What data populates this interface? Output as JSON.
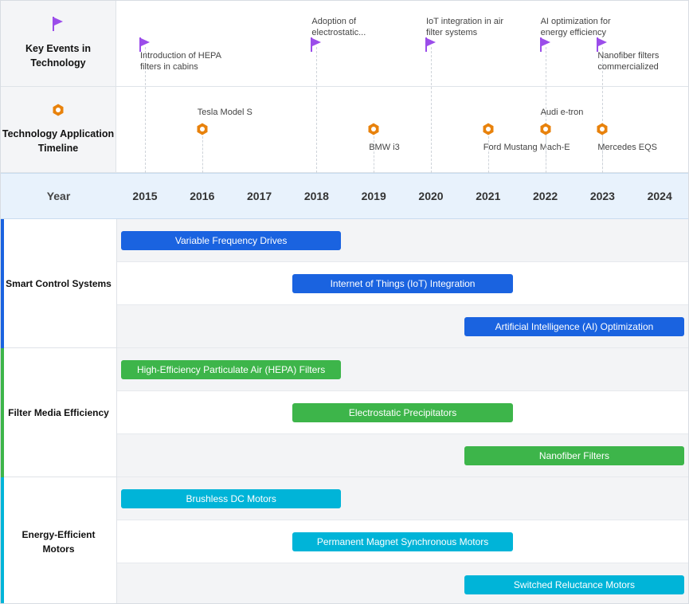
{
  "colors": {
    "event_flag": "#9b4dea",
    "application_marker": "#e8820c",
    "smart_control": "#1a63e0",
    "filter_media": "#3db54a",
    "motors": "#00b4d8",
    "header_bg": "#e8f2fc"
  },
  "icons": {
    "events": "flag-icon",
    "applications": "hexagon-nut-icon"
  },
  "chart_data": {
    "type": "gantt-timeline",
    "xlabel": "Year",
    "years": [
      2015,
      2016,
      2017,
      2018,
      2019,
      2020,
      2021,
      2022,
      2023,
      2024
    ],
    "key_events": {
      "label": "Key Events in Technology",
      "items": [
        {
          "year": 2015,
          "text": [
            "Introduction of HEPA",
            "filters in cabins"
          ]
        },
        {
          "year": 2018,
          "text": [
            "Adoption of",
            "electrostatic..."
          ]
        },
        {
          "year": 2020,
          "text": [
            "IoT integration in air",
            "filter systems"
          ]
        },
        {
          "year": 2022,
          "text": [
            "AI optimization for",
            "energy efficiency"
          ]
        },
        {
          "year": 2023,
          "text": [
            "Nanofiber filters",
            "commercialized"
          ]
        }
      ]
    },
    "applications": {
      "label": "Technology Application Timeline",
      "items": [
        {
          "year": 2016,
          "text": "Tesla Model S"
        },
        {
          "year": 2019,
          "text": "BMW i3"
        },
        {
          "year": 2021,
          "text": "Ford Mustang Mach-E"
        },
        {
          "year": 2022,
          "text": "Audi e-tron"
        },
        {
          "year": 2023,
          "text": "Mercedes EQS"
        }
      ]
    },
    "categories": [
      {
        "name": "Smart Control Systems",
        "color": "#1a63e0",
        "bars": [
          {
            "label": "Variable Frequency Drives",
            "start": 2015,
            "end": 2018.5
          },
          {
            "label": "Internet of Things (IoT) Integration",
            "start": 2018,
            "end": 2021.5
          },
          {
            "label": "Artificial Intelligence (AI) Optimization",
            "start": 2021,
            "end": 2024.5
          }
        ]
      },
      {
        "name": "Filter Media Efficiency",
        "color": "#3db54a",
        "bars": [
          {
            "label": "High-Efficiency Particulate Air (HEPA) Filters",
            "start": 2015,
            "end": 2018.5
          },
          {
            "label": "Electrostatic Precipitators",
            "start": 2018,
            "end": 2021.5
          },
          {
            "label": "Nanofiber Filters",
            "start": 2021,
            "end": 2024.5
          }
        ]
      },
      {
        "name": "Energy-Efficient Motors",
        "color": "#00b4d8",
        "bars": [
          {
            "label": "Brushless DC Motors",
            "start": 2015,
            "end": 2018.5
          },
          {
            "label": "Permanent Magnet Synchronous Motors",
            "start": 2018,
            "end": 2021.5
          },
          {
            "label": "Switched Reluctance Motors",
            "start": 2021,
            "end": 2024.5
          }
        ]
      }
    ]
  }
}
